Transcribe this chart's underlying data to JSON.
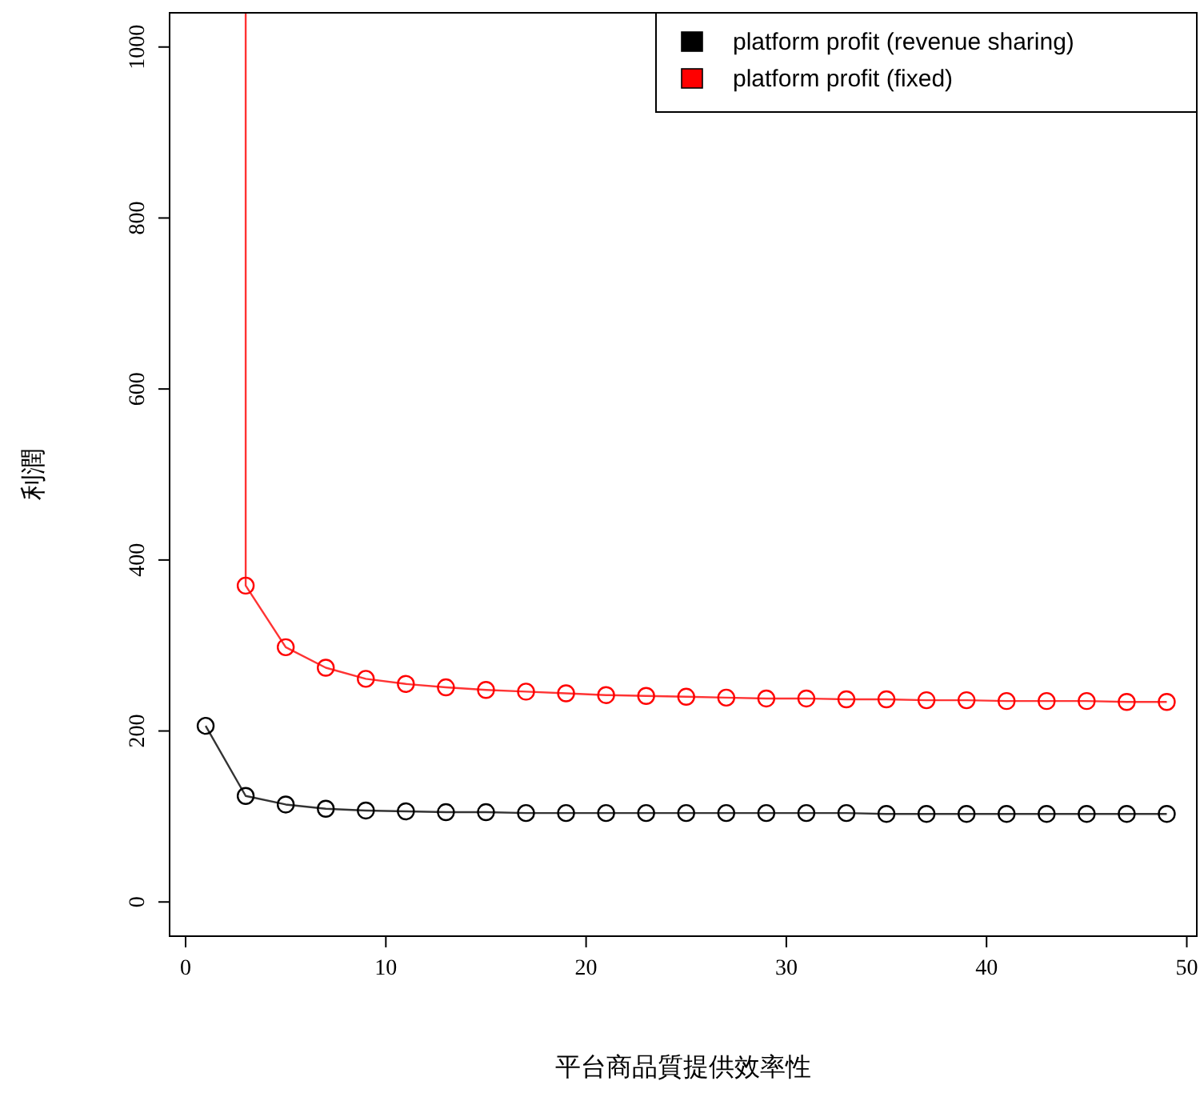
{
  "chart_data": {
    "type": "line",
    "xlabel": "平台商品質提供效率性",
    "ylabel": "利潤",
    "xlim": [
      -0.8,
      50.5
    ],
    "ylim": [
      -40,
      1040
    ],
    "xticks": [
      0,
      10,
      20,
      30,
      40,
      50
    ],
    "yticks": [
      0,
      200,
      400,
      600,
      800,
      1000
    ],
    "marker": "circle",
    "line_style": "solid",
    "legend": "top right",
    "grid": false,
    "series": [
      {
        "name": "platform profit (revenue sharing)",
        "color": "#000000",
        "x": [
          1,
          3,
          5,
          7,
          9,
          11,
          13,
          15,
          17,
          19,
          21,
          23,
          25,
          27,
          29,
          31,
          33,
          35,
          37,
          39,
          41,
          43,
          45,
          47,
          49
        ],
        "values": [
          206,
          124,
          114,
          109,
          107,
          106,
          105,
          105,
          104,
          104,
          104,
          104,
          104,
          104,
          104,
          104,
          104,
          103,
          103,
          103,
          103,
          103,
          103,
          103,
          103
        ]
      },
      {
        "name": "platform profit (fixed)",
        "color": "#ff0000",
        "x": [
          3,
          3,
          5,
          7,
          9,
          11,
          13,
          15,
          17,
          19,
          21,
          23,
          25,
          27,
          29,
          31,
          33,
          35,
          37,
          39,
          41,
          43,
          45,
          47,
          49
        ],
        "values": [
          1040,
          370,
          298,
          274,
          261,
          255,
          251,
          248,
          246,
          244,
          242,
          241,
          240,
          239,
          238,
          238,
          237,
          237,
          236,
          236,
          235,
          235,
          235,
          234,
          234
        ]
      }
    ]
  }
}
